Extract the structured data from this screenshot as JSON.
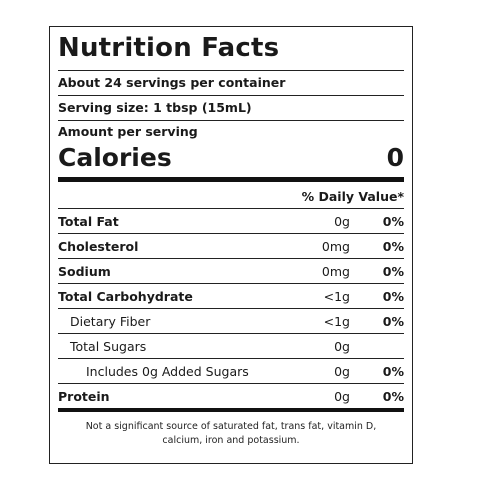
{
  "label": {
    "title": "Nutrition Facts",
    "servings_per_container": "About 24 servings per container",
    "serving_size": "Serving size: 1 tbsp (15mL)",
    "amount_per_serving": "Amount per serving",
    "calories_label": "Calories",
    "calories_value": "0",
    "daily_value_header": "% Daily Value*"
  },
  "nutrients": [
    {
      "name": "Total Fat",
      "amount": "0g",
      "dv": "0%"
    },
    {
      "name": "Cholesterol",
      "amount": "0mg",
      "dv": "0%"
    },
    {
      "name": "Sodium",
      "amount": "0mg",
      "dv": "0%"
    },
    {
      "name": "Total Carbohydrate",
      "amount": "<1g",
      "dv": "0%"
    },
    {
      "name": "Dietary Fiber",
      "amount": "<1g",
      "dv": "0%"
    },
    {
      "name": "Total Sugars",
      "amount": "0g",
      "dv": ""
    },
    {
      "name": "Includes 0g Added Sugars",
      "amount": "0g",
      "dv": "0%"
    },
    {
      "name": "Protein",
      "amount": "0g",
      "dv": "0%"
    }
  ],
  "footnote": {
    "line1": "Not a significant source of saturated fat, trans fat, vitamin D,",
    "line2": "calcium, iron and potassium."
  }
}
